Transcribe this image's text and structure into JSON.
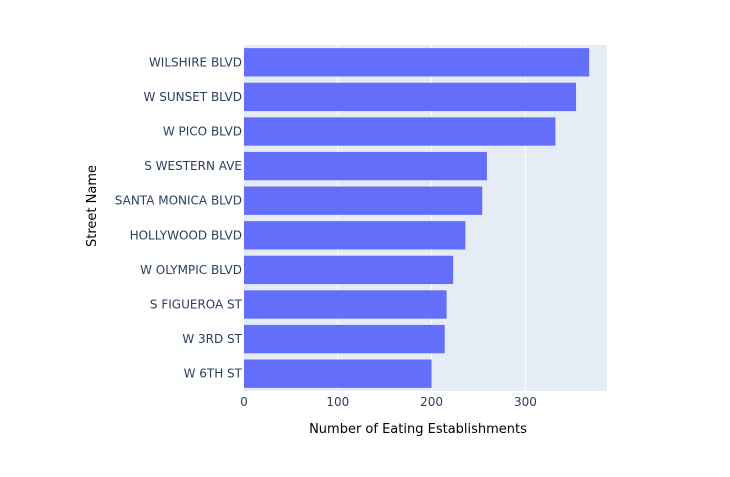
{
  "chart_data": {
    "type": "bar",
    "orientation": "horizontal",
    "categories": [
      "WILSHIRE BLVD",
      "W SUNSET BLVD",
      "W PICO BLVD",
      "S WESTERN AVE",
      "SANTA MONICA BLVD",
      "HOLLYWOOD BLVD",
      "W OLYMPIC BLVD",
      "S FIGUEROA ST",
      "W 3RD ST",
      "W 6TH ST"
    ],
    "values": [
      368,
      354,
      332,
      259,
      254,
      236,
      223,
      216,
      214,
      200
    ],
    "xlabel": "Number of Eating Establishments",
    "ylabel": "Street Name",
    "xlim": [
      0,
      387
    ],
    "xticks": [
      0,
      100,
      200,
      300
    ],
    "grid": true,
    "colors": {
      "bar": "#636efa",
      "plot_bg": "#e5ecf6",
      "grid": "#ffffff",
      "tick_text": "#2a3f5f"
    }
  }
}
